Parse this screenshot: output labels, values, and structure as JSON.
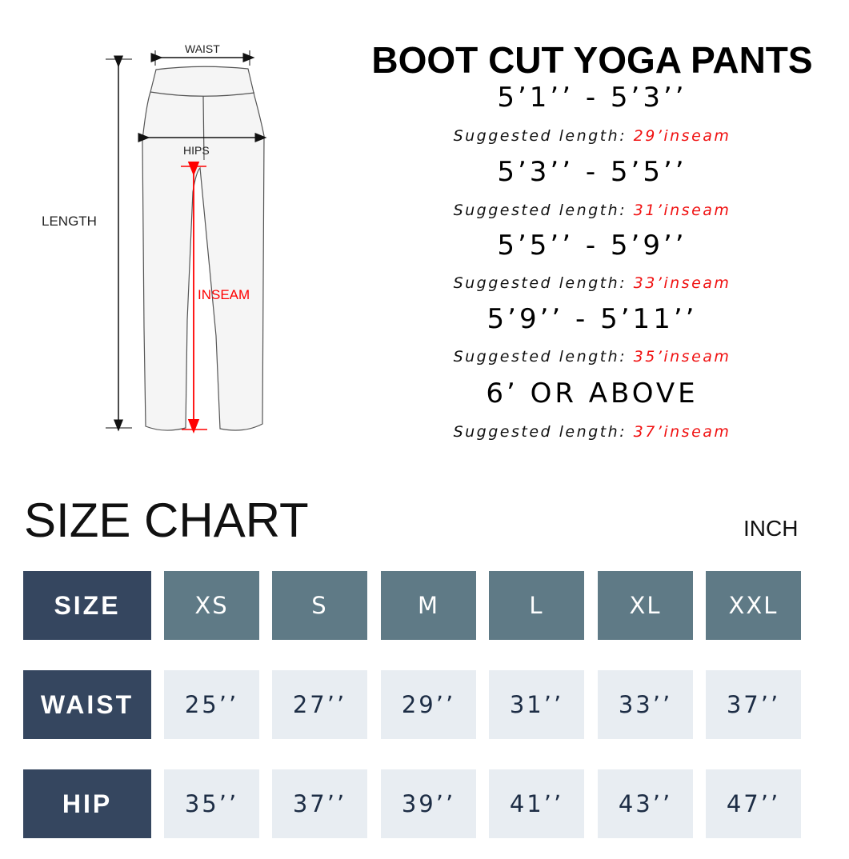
{
  "diagram": {
    "waist_label": "WAIST",
    "hips_label": "HIPS",
    "length_label": "LENGTH",
    "inseam_label": "INSEAM"
  },
  "header": {
    "title": "BOOT CUT YOGA PANTS"
  },
  "recommendations": [
    {
      "height_range": "5’1’’  -  5’3’’",
      "prefix": "Suggested length: ",
      "inseam": "29’inseam"
    },
    {
      "height_range": "5’3’’  -  5’5’’",
      "prefix": "Suggested length: ",
      "inseam": "31’inseam"
    },
    {
      "height_range": "5’5’’  -  5’9’’",
      "prefix": "Suggested length: ",
      "inseam": "33’inseam"
    },
    {
      "height_range": "5’9’’  -  5’11’’",
      "prefix": "Suggested length: ",
      "inseam": "35’inseam"
    },
    {
      "height_range": "6’ OR ABOVE",
      "prefix": "Suggested length: ",
      "inseam": "37’inseam"
    }
  ],
  "size_chart": {
    "title": "SIZE CHART",
    "unit": "INCH",
    "rows": [
      {
        "label": "SIZE",
        "values": [
          "XS",
          "S",
          "M",
          "L",
          "XL",
          "XXL"
        ]
      },
      {
        "label": "WAIST",
        "values": [
          "25’’",
          "27’’",
          "29’’",
          "31’’",
          "33’’",
          "37’’"
        ]
      },
      {
        "label": "HIP",
        "values": [
          "35’’",
          "37’’",
          "39’’",
          "41’’",
          "43’’",
          "47’’"
        ]
      }
    ]
  },
  "colors": {
    "row_header": "#35465f",
    "size_header": "#5f7a86",
    "value_cell": "#e8edf2",
    "accent_red": "#f01010"
  }
}
